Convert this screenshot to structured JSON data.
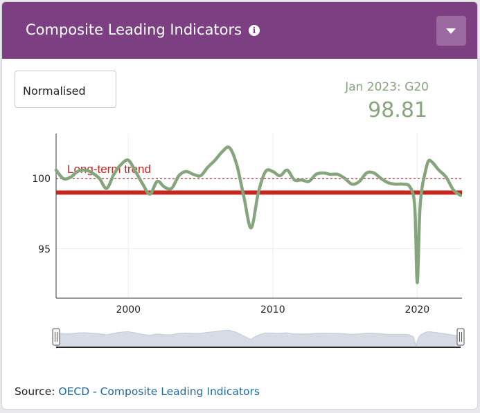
{
  "header": {
    "title": "Composite Leading Indicators",
    "info_icon": "info-icon",
    "dropdown_icon": "chevron-down-icon",
    "background_color": "#7c3f82"
  },
  "controls": {
    "mode_select": "Normalised"
  },
  "latest": {
    "label": "Jan 2023: G20",
    "value": "98.81",
    "color": "#86a57c"
  },
  "source": {
    "prefix": "Source:",
    "link_text": "OECD - Composite Leading Indicators"
  },
  "chart_data": {
    "type": "line",
    "x": [
      1995.0,
      1995.5,
      1996.0,
      1996.5,
      1997.0,
      1997.5,
      1998.0,
      1998.5,
      1999.0,
      1999.5,
      2000.0,
      2000.5,
      2001.0,
      2001.5,
      2002.0,
      2002.5,
      2003.0,
      2003.5,
      2004.0,
      2004.5,
      2005.0,
      2005.5,
      2006.0,
      2006.5,
      2007.0,
      2007.5,
      2008.0,
      2008.5,
      2009.0,
      2009.5,
      2010.0,
      2010.5,
      2011.0,
      2011.5,
      2012.0,
      2012.5,
      2013.0,
      2013.5,
      2014.0,
      2014.5,
      2015.0,
      2015.5,
      2016.0,
      2016.5,
      2017.0,
      2017.5,
      2018.0,
      2018.5,
      2019.0,
      2019.5,
      2019.83,
      2020.0,
      2020.17,
      2020.33,
      2020.5,
      2020.75,
      2021.0,
      2021.5,
      2022.0,
      2022.5,
      2023.0
    ],
    "series": [
      {
        "values": [
          100.6,
          100.0,
          100.1,
          100.5,
          100.6,
          100.4,
          100.0,
          99.3,
          100.3,
          101.0,
          101.3,
          100.5,
          99.6,
          98.9,
          99.8,
          99.4,
          99.3,
          100.2,
          100.5,
          100.3,
          100.2,
          100.8,
          101.3,
          101.9,
          102.2,
          101.0,
          98.7,
          96.5,
          99.0,
          100.5,
          100.5,
          100.2,
          100.6,
          99.9,
          99.9,
          99.8,
          100.3,
          100.4,
          100.3,
          100.3,
          100.0,
          99.6,
          99.8,
          100.4,
          100.4,
          100.0,
          99.7,
          99.6,
          99.6,
          99.4,
          98.0,
          92.6,
          97.5,
          99.3,
          100.2,
          101.2,
          101.2,
          100.6,
          100.1,
          99.2,
          98.8
        ],
        "color": "#86a57c"
      }
    ],
    "trend_line_value": 100,
    "trend_label": "Long-term trend",
    "g20_reference_line": 99.0,
    "x_ticks": [
      "2000",
      "2010",
      "2020"
    ],
    "y_ticks": [
      "95",
      "100"
    ],
    "xlim": [
      1995,
      2023.1
    ],
    "ylim": [
      91.5,
      103.2
    ],
    "grid": true
  }
}
